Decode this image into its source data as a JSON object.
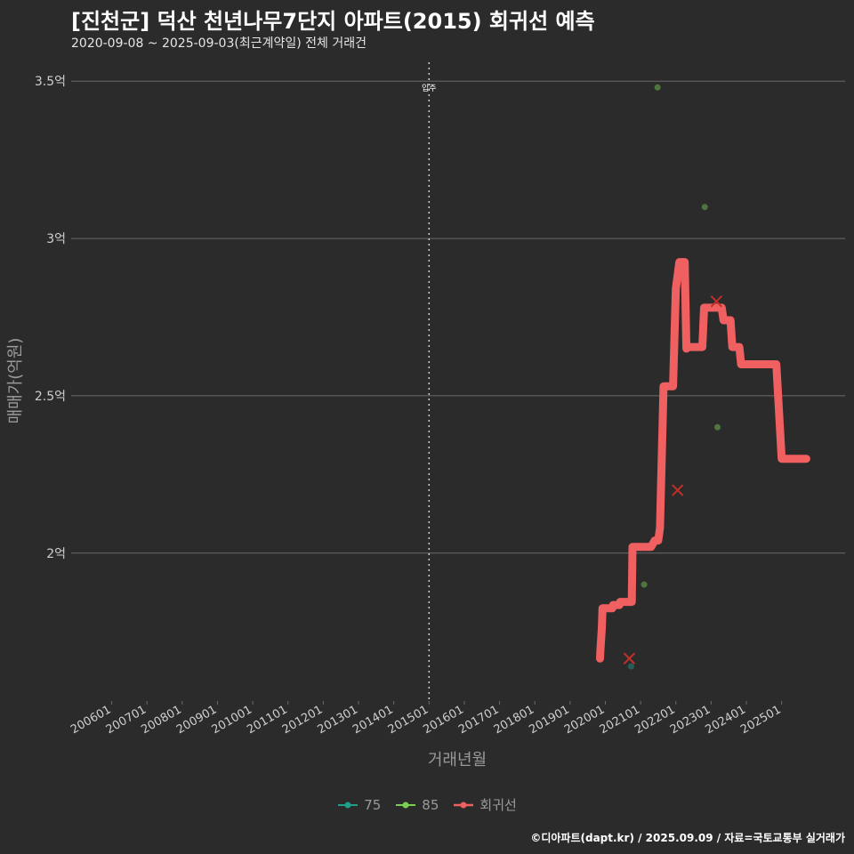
{
  "title": "[진천군] 덕산 천년나무7단지 아파트(2015) 회귀선 예측",
  "subtitle": "2020-09-08 ~ 2025-09-03(최근계약일) 전체 거래건",
  "caption": "©디아파트(dapt.kr) / 2025.09.09 / 자료=국토교통부 실거래가",
  "colors": {
    "background": "#2b2b2c",
    "grid": "#6a6a6a",
    "series_75": "#1f9e89",
    "series_85": "#7ad151",
    "regression": "#f06060",
    "outlier_cross": "#c0302a"
  },
  "chart_data": {
    "type": "scatter",
    "title": "[진천군] 덕산 천년나무7단지 아파트(2015) 회귀선 예측",
    "xlabel": "거래년월",
    "ylabel": "매매가(억원)",
    "x_ticks": [
      "200601",
      "200701",
      "200801",
      "200901",
      "201001",
      "201101",
      "201201",
      "201301",
      "201401",
      "201501",
      "201601",
      "201701",
      "201801",
      "201901",
      "202001",
      "202101",
      "202201",
      "202301",
      "202401",
      "202501"
    ],
    "x_range": [
      2004.85,
      2026.8
    ],
    "y_ticks": [
      {
        "value": 2.0,
        "label": "2억"
      },
      {
        "value": 2.5,
        "label": "2.5억"
      },
      {
        "value": 3.0,
        "label": "3억"
      },
      {
        "value": 3.5,
        "label": "3.5억"
      }
    ],
    "y_range": [
      1.53,
      3.56
    ],
    "vline": {
      "x": 2015.0,
      "label": "입주"
    },
    "series": [
      {
        "name": "75",
        "points": [
          {
            "x": 2020.73,
            "y": 1.64
          }
        ]
      },
      {
        "name": "85",
        "points": [
          {
            "x": 2021.1,
            "y": 1.9
          },
          {
            "x": 2021.48,
            "y": 3.48
          },
          {
            "x": 2022.82,
            "y": 3.1
          },
          {
            "x": 2023.18,
            "y": 2.4
          }
        ]
      }
    ],
    "crosses": [
      {
        "x": 2020.68,
        "y": 1.665
      },
      {
        "x": 2022.05,
        "y": 2.2
      },
      {
        "x": 2023.15,
        "y": 2.8
      }
    ],
    "regression": {
      "name": "회귀선",
      "x": [
        2019.85,
        2019.86,
        2019.9,
        2019.92,
        2020.0,
        2020.2,
        2020.22,
        2020.4,
        2020.42,
        2020.6,
        2020.75,
        2020.77,
        2021.1,
        2021.3,
        2021.4,
        2021.5,
        2021.55,
        2021.65,
        2021.7,
        2021.8,
        2021.92,
        2022.0,
        2022.1,
        2022.2,
        2022.25,
        2022.3,
        2022.35,
        2022.4,
        2022.75,
        2022.8,
        2023.0,
        2023.1,
        2023.3,
        2023.35,
        2023.55,
        2023.6,
        2023.8,
        2023.85,
        2024.5,
        2024.85,
        2025.0,
        2025.7
      ],
      "y": [
        1.665,
        1.69,
        1.76,
        1.825,
        1.825,
        1.825,
        1.835,
        1.835,
        1.845,
        1.845,
        1.845,
        2.02,
        2.02,
        2.02,
        2.04,
        2.04,
        2.08,
        2.53,
        2.53,
        2.53,
        2.53,
        2.84,
        2.925,
        2.925,
        2.925,
        2.65,
        2.655,
        2.655,
        2.655,
        2.78,
        2.78,
        2.78,
        2.78,
        2.74,
        2.74,
        2.655,
        2.655,
        2.6,
        2.6,
        2.6,
        2.3,
        2.3
      ]
    },
    "legend": [
      {
        "name": "75",
        "color": "#1f9e89"
      },
      {
        "name": "85",
        "color": "#7ad151"
      },
      {
        "name": "회귀선",
        "color": "#f06060"
      }
    ],
    "legend_position": "bottom"
  }
}
